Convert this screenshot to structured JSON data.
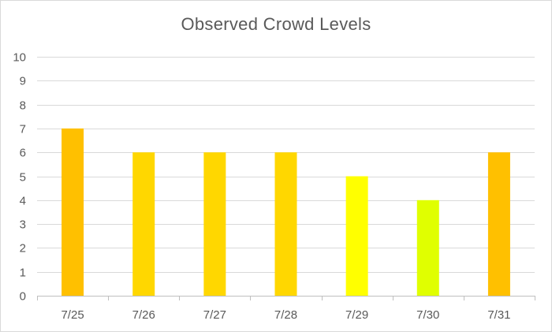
{
  "chart_data": {
    "type": "bar",
    "title": "Observed Crowd Levels",
    "xlabel": "",
    "ylabel": "",
    "categories": [
      "7/25",
      "7/26",
      "7/27",
      "7/28",
      "7/29",
      "7/30",
      "7/31"
    ],
    "values": [
      7,
      6,
      6,
      6,
      5,
      4,
      6
    ],
    "bar_colors": [
      "#FFC000",
      "#FFD700",
      "#FFD700",
      "#FFD700",
      "#FFFF00",
      "#E0FF00",
      "#FFC000"
    ],
    "ylim": [
      0,
      10
    ],
    "yticks": [
      "0",
      "1",
      "2",
      "3",
      "4",
      "5",
      "6",
      "7",
      "8",
      "9",
      "10"
    ],
    "grid": true,
    "legend": "none",
    "colors": {
      "gridline": "#d9d9d9",
      "axis": "#bfbfbf",
      "text": "#595959"
    }
  }
}
